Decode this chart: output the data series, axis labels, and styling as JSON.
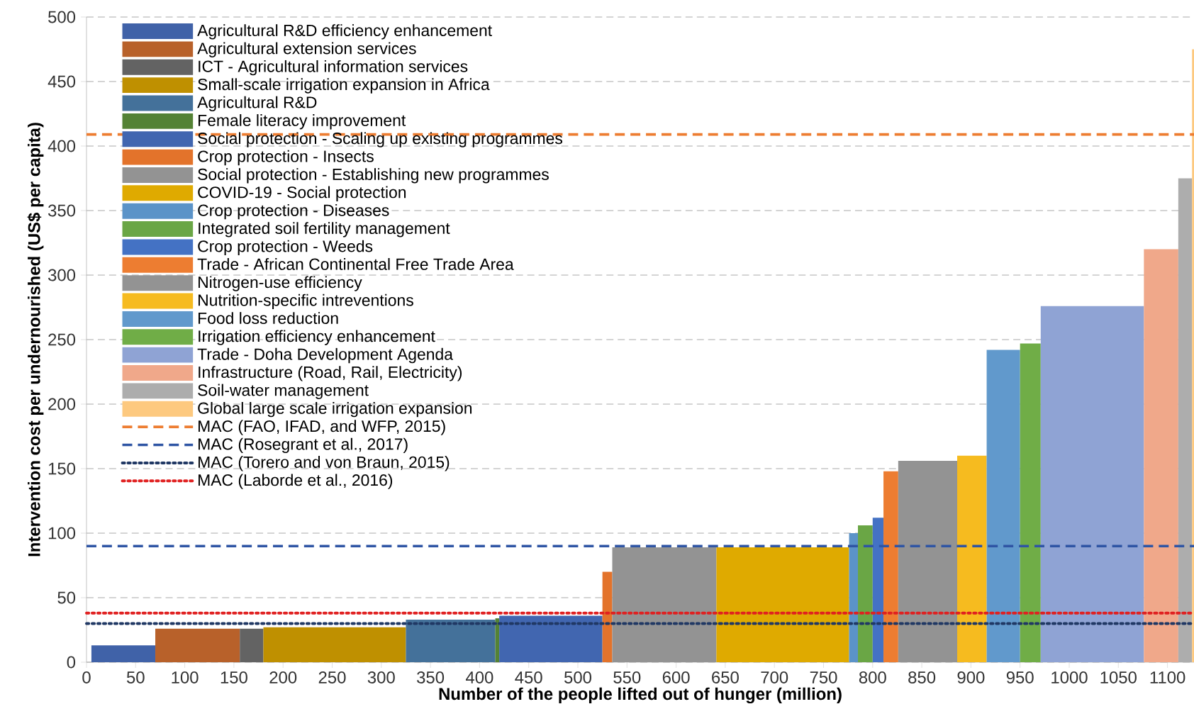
{
  "chart_data": {
    "type": "area",
    "xlabel": "Number of the people lifted out of hunger (million)",
    "ylabel": "Intervention cost per undernourished (US$ per capita)",
    "xlim": [
      0,
      1127
    ],
    "ylim": [
      0,
      500
    ],
    "xticks": [
      0,
      50,
      100,
      150,
      200,
      250,
      300,
      350,
      400,
      450,
      500,
      550,
      600,
      650,
      700,
      750,
      800,
      850,
      900,
      950,
      1000,
      1050,
      1100
    ],
    "yticks": [
      0,
      50,
      100,
      150,
      200,
      250,
      300,
      350,
      400,
      450,
      500
    ],
    "grid": "y",
    "legend": "top left",
    "series": [
      {
        "name": "Agricultural R&D efficiency enhancement",
        "color": "#4062a8",
        "x": [
          5,
          70
        ],
        "values": [
          13,
          13
        ]
      },
      {
        "name": "Agricultural extension services",
        "color": "#b8612a",
        "x": [
          70,
          156
        ],
        "values": [
          26,
          26
        ]
      },
      {
        "name": "ICT - Agricultural information services",
        "color": "#636363",
        "x": [
          156,
          180
        ],
        "values": [
          26,
          26
        ]
      },
      {
        "name": "Small-scale irrigation expansion in Africa",
        "color": "#bf9000",
        "x": [
          180,
          325
        ],
        "values": [
          27,
          27
        ]
      },
      {
        "name": "Agricultural R&D",
        "color": "#44719a",
        "x": [
          325,
          416
        ],
        "values": [
          33,
          33
        ]
      },
      {
        "name": "Female literacy improvement",
        "color": "#548235",
        "x": [
          416,
          420
        ],
        "values": [
          34,
          34
        ]
      },
      {
        "name": "Social protection - Scaling up existing programmes",
        "color": "#4166b0",
        "x": [
          420,
          525
        ],
        "values": [
          36,
          36
        ]
      },
      {
        "name": "Crop protection - Insects",
        "color": "#e3732b",
        "x": [
          525,
          535
        ],
        "values": [
          70,
          70
        ]
      },
      {
        "name": "Social protection - Establishing new programmes",
        "color": "#939393",
        "x": [
          535,
          641
        ],
        "values": [
          89,
          89
        ]
      },
      {
        "name": "COVID-19 - Social protection",
        "color": "#dfaa00",
        "x": [
          641,
          776
        ],
        "values": [
          89,
          89
        ]
      },
      {
        "name": "Crop protection - Diseases",
        "color": "#5b93c8",
        "x": [
          776,
          785
        ],
        "values": [
          100,
          100
        ]
      },
      {
        "name": "Integrated soil fertility management",
        "color": "#6aa645",
        "x": [
          785,
          800
        ],
        "values": [
          106,
          106
        ]
      },
      {
        "name": "Crop protection - Weeds",
        "color": "#4472c4",
        "x": [
          800,
          811
        ],
        "values": [
          112,
          112
        ]
      },
      {
        "name": "Trade - African Continental Free Trade Area",
        "color": "#ed7d31",
        "x": [
          811,
          826
        ],
        "values": [
          148,
          148
        ]
      },
      {
        "name": "Nitrogen-use efficiency",
        "color": "#939393",
        "x": [
          826,
          886
        ],
        "values": [
          156,
          156
        ]
      },
      {
        "name": "Nutrition-specific intreventions",
        "color": "#f6bb1f",
        "x": [
          886,
          916
        ],
        "values": [
          160,
          160
        ]
      },
      {
        "name": "Food loss reduction",
        "color": "#6199cc",
        "x": [
          916,
          950
        ],
        "values": [
          242,
          242
        ]
      },
      {
        "name": "Irrigation efficiency enhancement",
        "color": "#70ad47",
        "x": [
          950,
          971
        ],
        "values": [
          247,
          247
        ]
      },
      {
        "name": "Trade - Doha Development Agenda",
        "color": "#8fa3d4",
        "x": [
          971,
          1076
        ],
        "values": [
          276,
          276
        ]
      },
      {
        "name": "Infrastructure (Road, Rail, Electricity)",
        "color": "#f0a88a",
        "x": [
          1076,
          1111
        ],
        "values": [
          320,
          320
        ]
      },
      {
        "name": "Soil-water management",
        "color": "#adadad",
        "x": [
          1111,
          1125
        ],
        "values": [
          375,
          375
        ]
      },
      {
        "name": "Global large scale irrigation expansion",
        "color": "#fdc97f",
        "x": [
          1125,
          1127
        ],
        "values": [
          475,
          475
        ]
      }
    ],
    "ref_lines": [
      {
        "axis": "y",
        "value": 409,
        "label": "MAC (FAO, IFAD, and WFP, 2015)",
        "color": "#ed7d31",
        "line_style": "dashed"
      },
      {
        "axis": "y",
        "value": 90,
        "label": "MAC (Rosegrant et al., 2017)",
        "color": "#2f55a4",
        "line_style": "dashed"
      },
      {
        "axis": "y",
        "value": 30,
        "label": "MAC (Torero and von Braun, 2015)",
        "color": "#203864",
        "line_style": "dotted"
      },
      {
        "axis": "y",
        "value": 38,
        "label": "MAC (Laborde et al., 2016)",
        "color": "#e02020",
        "line_style": "dotted"
      }
    ]
  }
}
